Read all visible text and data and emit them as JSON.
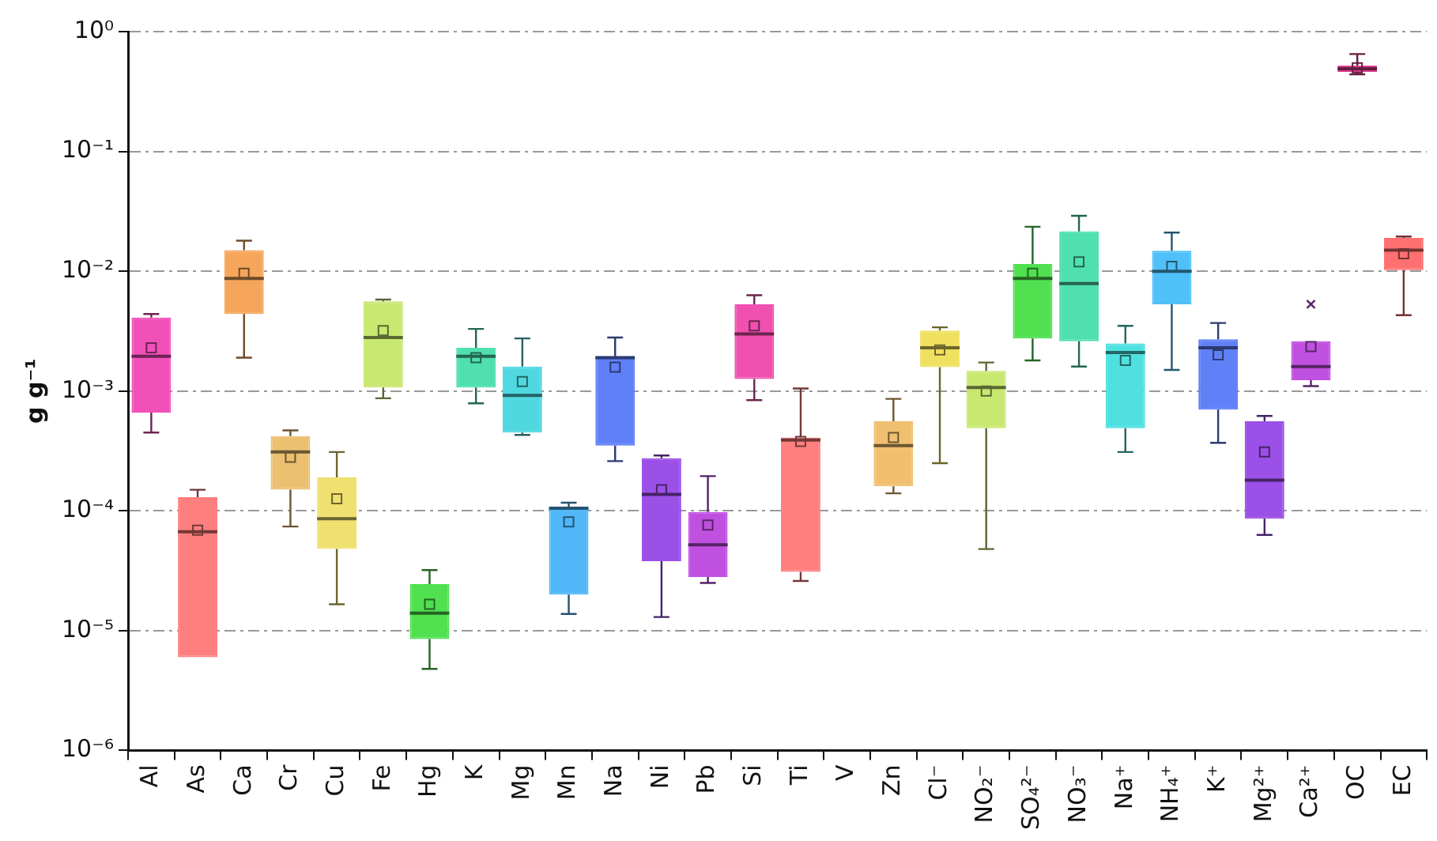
{
  "chart_data": {
    "type": "box",
    "ylabel": "g g⁻¹",
    "categories": [
      "Al",
      "As",
      "Ca",
      "Cr",
      "Cu",
      "Fe",
      "Hg",
      "K",
      "Mg",
      "Mn",
      "Na",
      "Ni",
      "Pb",
      "Si",
      "Ti",
      "V",
      "Zn",
      "Cl⁻",
      "NO₂⁻",
      "SO₄²⁻",
      "NO₃⁻",
      "Na⁺",
      "NH₄⁺",
      "K⁺",
      "Mg²⁺",
      "Ca²⁺",
      "OC",
      "EC"
    ],
    "colors": [
      "#f050b8",
      "#ff7f7f",
      "#f5a65b",
      "#ebc070",
      "#f0e070",
      "#c8e870",
      "#50e050",
      "#50e0b0",
      "#50d8e0",
      "#50b8f8",
      "#6080f8",
      "#9b50e8",
      "#c050e0",
      "#f050b0",
      "#ff7f7f",
      null,
      "#f0c070",
      "#f0e060",
      "#c8e870",
      "#50e050",
      "#50e0b0",
      "#50e0e0",
      "#50c0f8",
      "#6080f8",
      "#9b50e8",
      "#c050e0",
      "#e04090",
      "#ff7070"
    ],
    "boxes": [
      {
        "low": 0.00045,
        "q1": 0.00066,
        "median": 0.00195,
        "q3": 0.0041,
        "high": 0.0044,
        "mean": 0.0023
      },
      {
        "low": 6e-06,
        "q1": 6e-06,
        "median": 6.7e-05,
        "q3": 0.00013,
        "high": 0.00015,
        "mean": 6.9e-05
      },
      {
        "low": 0.0019,
        "q1": 0.0044,
        "median": 0.0087,
        "q3": 0.015,
        "high": 0.018,
        "mean": 0.0096
      },
      {
        "low": 7.4e-05,
        "q1": 0.00015,
        "median": 0.00031,
        "q3": 0.00042,
        "high": 0.00047,
        "mean": 0.00028
      },
      {
        "low": 1.66e-05,
        "q1": 4.8e-05,
        "median": 8.6e-05,
        "q3": 0.00019,
        "high": 0.00031,
        "mean": 0.000126
      },
      {
        "low": 0.00087,
        "q1": 0.00107,
        "median": 0.0028,
        "q3": 0.0056,
        "high": 0.0058,
        "mean": 0.0032
      },
      {
        "low": 4.8e-06,
        "q1": 8.5e-06,
        "median": 1.4e-05,
        "q3": 2.45e-05,
        "high": 3.2e-05,
        "mean": 1.66e-05
      },
      {
        "low": 0.00079,
        "q1": 0.00107,
        "median": 0.00195,
        "q3": 0.0023,
        "high": 0.0033,
        "mean": 0.0019
      },
      {
        "low": 0.00043,
        "q1": 0.00045,
        "median": 0.00092,
        "q3": 0.0016,
        "high": 0.00275,
        "mean": 0.0012
      },
      {
        "low": 1.38e-05,
        "q1": 2e-05,
        "median": 0.000105,
        "q3": 0.000107,
        "high": 0.000117,
        "mean": 8.1e-05
      },
      {
        "low": 0.00026,
        "q1": 0.00035,
        "median": 0.0019,
        "q3": 0.00195,
        "high": 0.0028,
        "mean": 0.00158
      },
      {
        "low": 1.3e-05,
        "q1": 3.8e-05,
        "median": 0.000137,
        "q3": 0.000275,
        "high": 0.00029,
        "mean": 0.00015
      },
      {
        "low": 2.5e-05,
        "q1": 2.8e-05,
        "median": 5.2e-05,
        "q3": 9.8e-05,
        "high": 0.000195,
        "mean": 7.6e-05
      },
      {
        "low": 0.00084,
        "q1": 0.00126,
        "median": 0.003,
        "q3": 0.0053,
        "high": 0.0063,
        "mean": 0.0035
      },
      {
        "low": 2.6e-05,
        "q1": 3.1e-05,
        "median": 0.00039,
        "q3": 0.00041,
        "high": 0.00105,
        "mean": 0.00038
      },
      null,
      {
        "low": 0.00014,
        "q1": 0.00016,
        "median": 0.00035,
        "q3": 0.00056,
        "high": 0.00086,
        "mean": 0.00041
      },
      {
        "low": 0.00025,
        "q1": 0.00158,
        "median": 0.0023,
        "q3": 0.0032,
        "high": 0.0034,
        "mean": 0.0022
      },
      {
        "low": 4.8e-05,
        "q1": 0.00049,
        "median": 0.00107,
        "q3": 0.00147,
        "high": 0.00173,
        "mean": 0.001
      },
      {
        "low": 0.0018,
        "q1": 0.00275,
        "median": 0.0087,
        "q3": 0.0115,
        "high": 0.0235,
        "mean": 0.0096
      },
      {
        "low": 0.0016,
        "q1": 0.0026,
        "median": 0.0079,
        "q3": 0.0215,
        "high": 0.029,
        "mean": 0.012
      },
      {
        "low": 0.00031,
        "q1": 0.00049,
        "median": 0.0021,
        "q3": 0.0025,
        "high": 0.0035,
        "mean": 0.0018
      },
      {
        "low": 0.0015,
        "q1": 0.0053,
        "median": 0.01,
        "q3": 0.0148,
        "high": 0.021,
        "mean": 0.011
      },
      {
        "low": 0.00037,
        "q1": 0.0007,
        "median": 0.0023,
        "q3": 0.0027,
        "high": 0.0037,
        "mean": 0.002
      },
      {
        "low": 6.3e-05,
        "q1": 8.6e-05,
        "median": 0.00018,
        "q3": 0.00056,
        "high": 0.00062,
        "mean": 0.00031
      },
      {
        "low": 0.0011,
        "q1": 0.00123,
        "median": 0.0016,
        "q3": 0.0026,
        "high": 0.0026,
        "mean": 0.00235,
        "outliers": [
          0.0053
        ]
      },
      {
        "low": 0.44,
        "q1": 0.46,
        "median": 0.49,
        "q3": 0.52,
        "high": 0.65,
        "mean": 0.5
      },
      {
        "low": 0.0043,
        "q1": 0.0102,
        "median": 0.015,
        "q3": 0.019,
        "high": 0.0195,
        "mean": 0.014
      }
    ],
    "log": true,
    "grid": "y",
    "ylim": [
      1e-06,
      1
    ],
    "yticks": [
      {
        "value": 1e-06,
        "label": "10⁻⁶"
      },
      {
        "value": 1e-05,
        "label": "10⁻⁵"
      },
      {
        "value": 0.0001,
        "label": "10⁻⁴"
      },
      {
        "value": 0.001,
        "label": "10⁻³"
      },
      {
        "value": 0.01,
        "label": "10⁻²"
      },
      {
        "value": 0.1,
        "label": "10⁻¹"
      },
      {
        "value": 1,
        "label": "10⁰"
      }
    ]
  }
}
